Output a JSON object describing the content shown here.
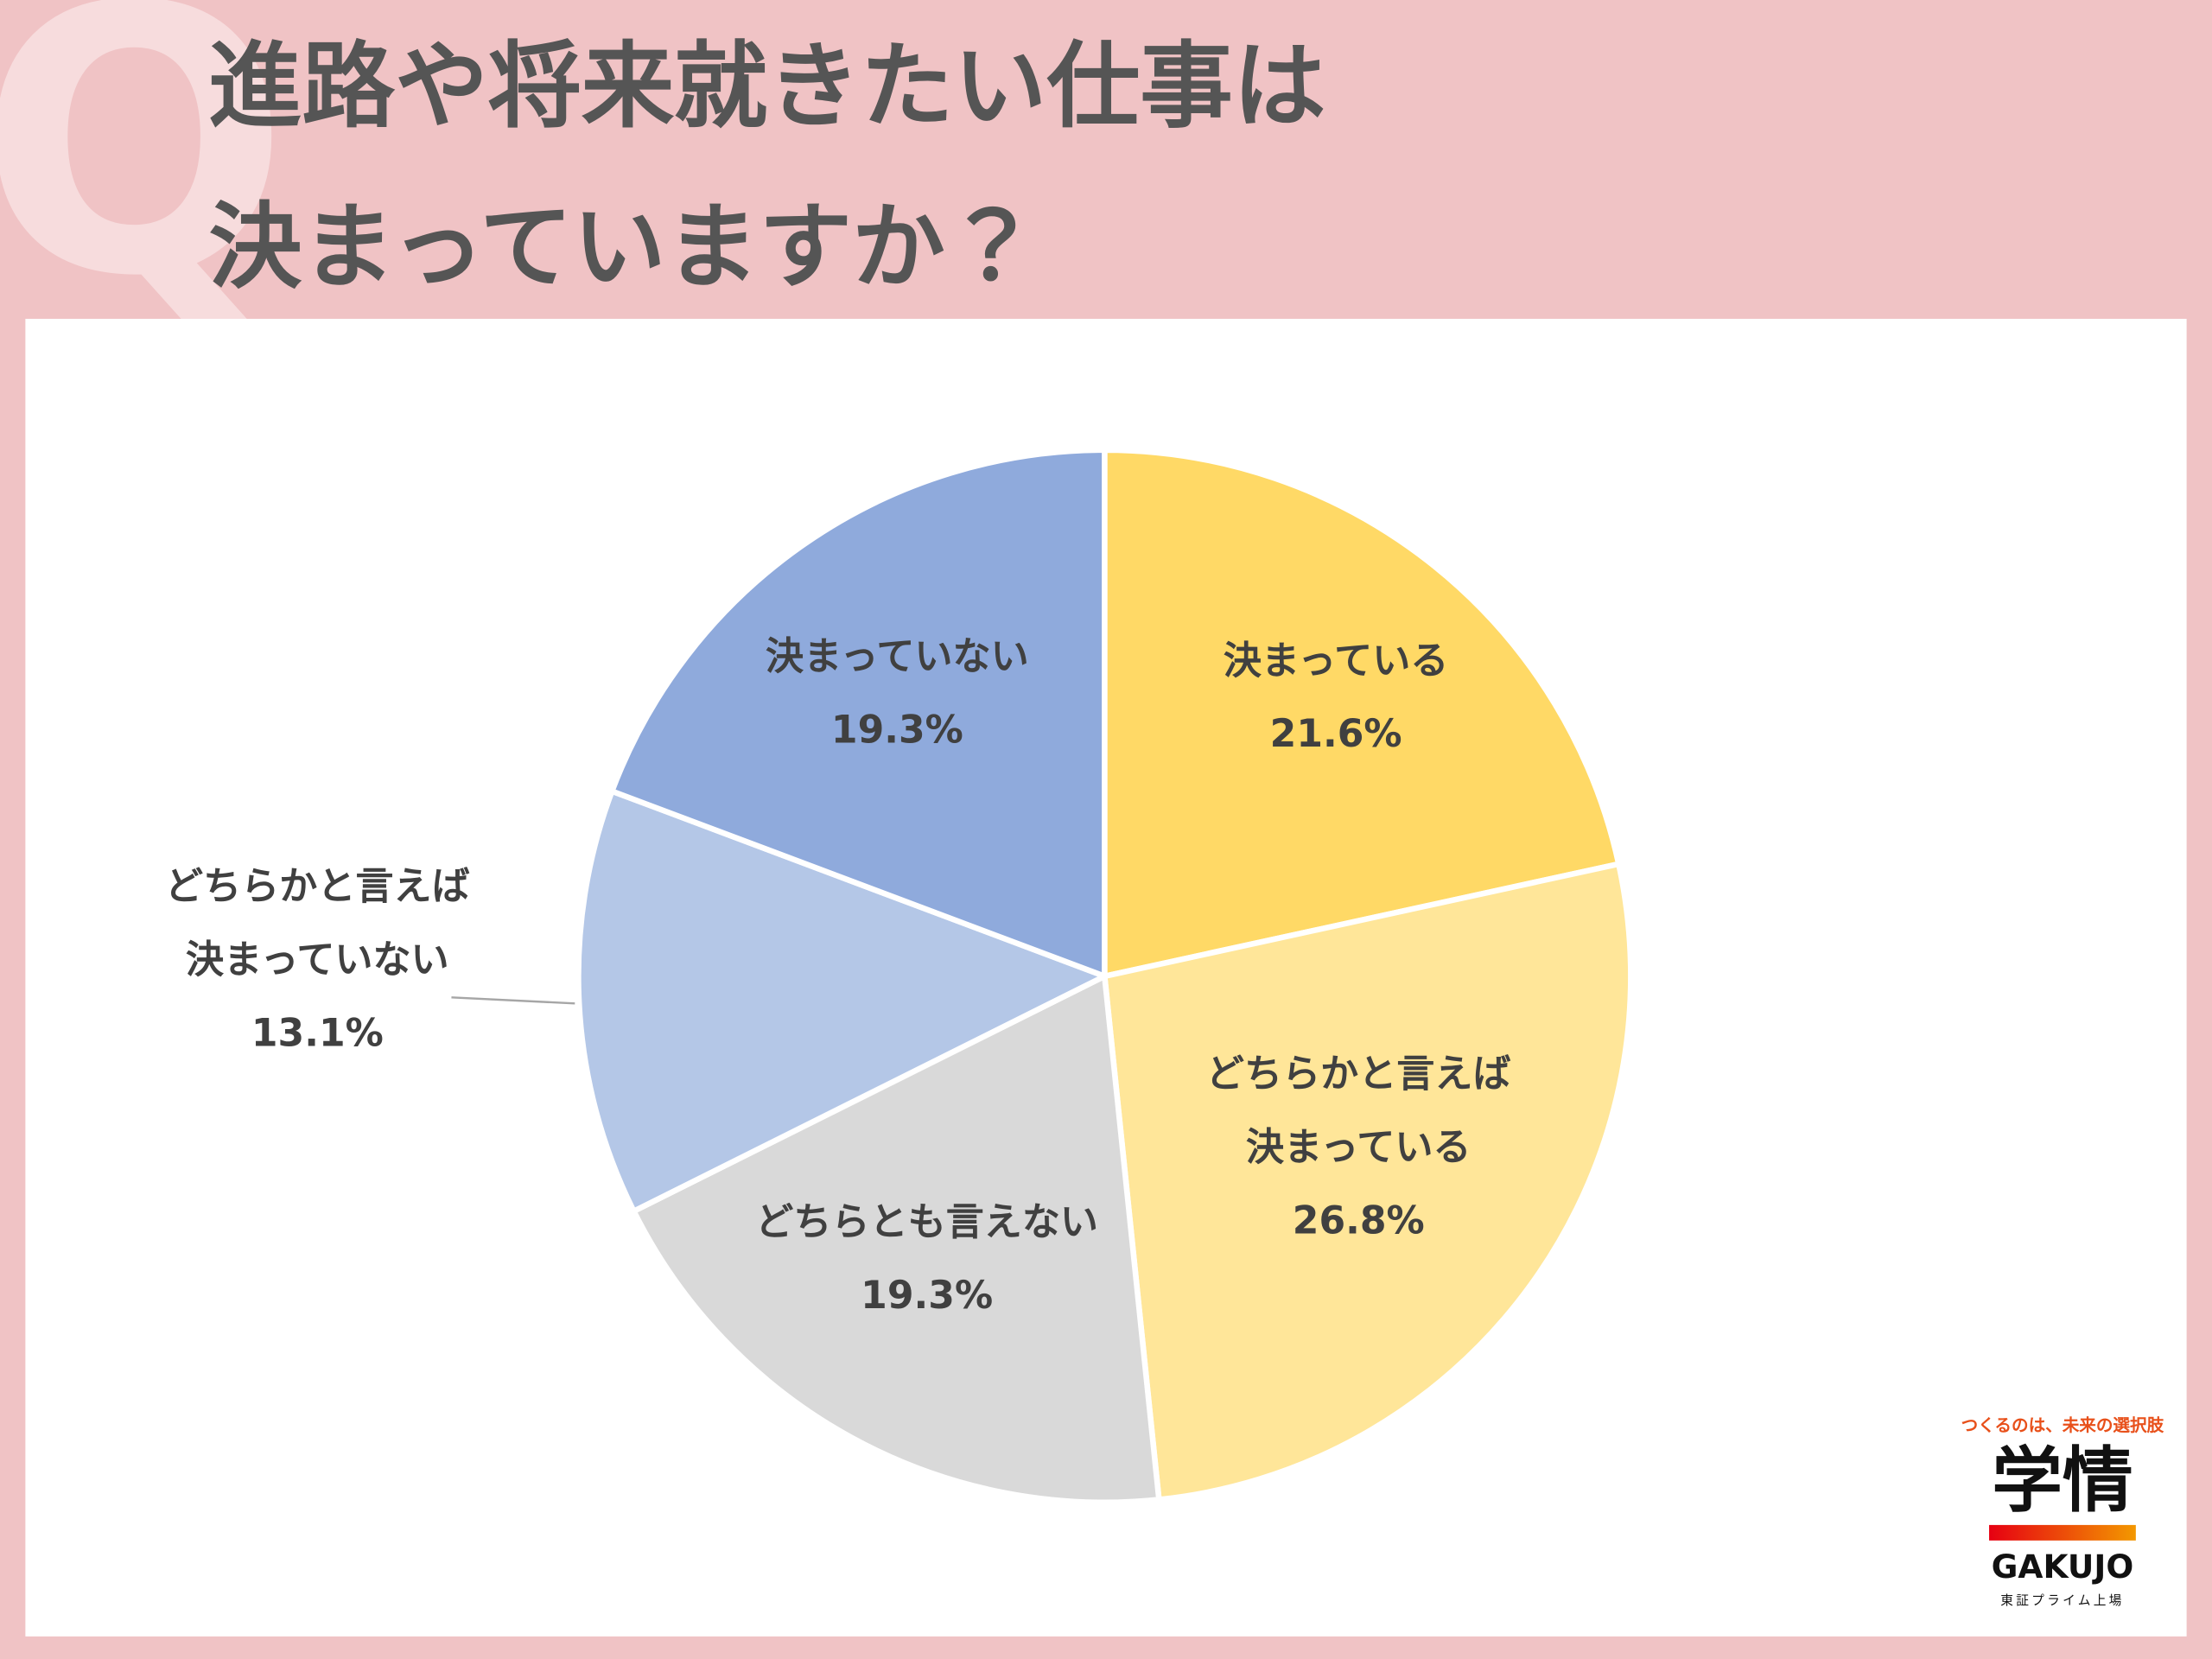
{
  "chart_data": {
    "type": "pie",
    "badge": "Q",
    "title": [
      "進路や将来就きたい仕事は",
      "決まっていますか？"
    ],
    "categories": [
      "決まっている",
      "どちらかと言えば\n決まっている",
      "どちらとも言えない",
      "どちらかと言えば\n決まっていない",
      "決まっていない"
    ],
    "values": [
      21.6,
      26.8,
      19.3,
      13.1,
      19.3
    ],
    "value_labels": [
      "21.6%",
      "26.8%",
      "19.3%",
      "13.1%",
      "19.3%"
    ],
    "colors": [
      "#ffd966",
      "#ffe699",
      "#d9d9d9",
      "#b4c7e7",
      "#8faadc"
    ],
    "logo": {
      "tagline": "つくるのは、未来の選択肢",
      "name": "学情",
      "name_en": "GAKUJO",
      "note": "東証プライム上場"
    }
  }
}
